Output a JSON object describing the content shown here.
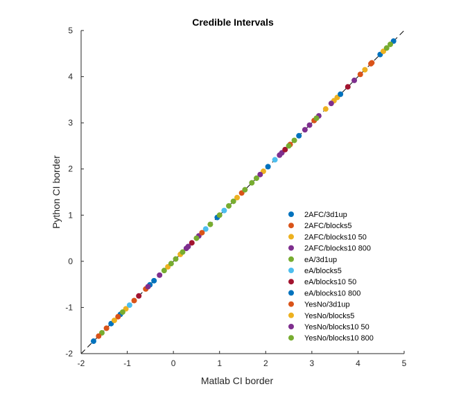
{
  "chart_data": {
    "type": "scatter",
    "title": "Credible Intervals",
    "xlabel": "Matlab CI border",
    "ylabel": "Python CI border",
    "xlim": [
      -2,
      5
    ],
    "ylim": [
      -2,
      5
    ],
    "xticks": [
      "-2",
      "-1",
      "0",
      "1",
      "2",
      "3",
      "4",
      "5"
    ],
    "yticks": [
      "-2",
      "-1",
      "0",
      "1",
      "2",
      "3",
      "4",
      "5"
    ],
    "grid": false,
    "legend_position": "bottom-right",
    "reference_line": "identity",
    "series": [
      {
        "name": "2AFC/3d1up",
        "color": "#0072BD",
        "x": [
          -1.73,
          -1.15,
          -0.51,
          0.95,
          2.05,
          4.48,
          4.77
        ],
        "y": [
          -1.73,
          -1.15,
          -0.51,
          0.95,
          2.05,
          4.48,
          4.77
        ]
      },
      {
        "name": "2AFC/blocks5",
        "color": "#D95319",
        "x": [
          -1.45,
          -1.2,
          -0.6,
          1.48,
          2.53,
          4.05,
          4.3
        ],
        "y": [
          -1.45,
          -1.2,
          -0.6,
          1.48,
          2.53,
          4.05,
          4.3
        ]
      },
      {
        "name": "2AFC/blocks10 50",
        "color": "#EDB120",
        "x": [
          -1.03,
          -0.12,
          1.95,
          3.3,
          3.55,
          4.55
        ],
        "y": [
          -1.03,
          -0.12,
          1.95,
          3.3,
          3.55,
          4.55
        ]
      },
      {
        "name": "2AFC/blocks10 800",
        "color": "#7E2F8E",
        "x": [
          -0.3,
          0.28,
          0.55,
          2.35,
          2.85,
          3.15,
          3.92
        ],
        "y": [
          -0.3,
          0.28,
          0.55,
          2.35,
          2.85,
          3.15,
          3.92
        ]
      },
      {
        "name": "eA/3d1up",
        "color": "#77AC30",
        "x": [
          -1.55,
          -0.05,
          0.5,
          1.2,
          1.7,
          2.62,
          4.62
        ],
        "y": [
          -1.55,
          -0.05,
          0.5,
          1.2,
          1.7,
          2.62,
          4.62
        ]
      },
      {
        "name": "eA/blocks5",
        "color": "#4DBEEE",
        "x": [
          -0.95,
          0.7,
          1.1,
          2.2
        ],
        "y": [
          -0.95,
          0.7,
          1.1,
          2.2
        ]
      },
      {
        "name": "eA/blocks10 50",
        "color": "#A2142F",
        "x": [
          -0.75,
          0.4,
          2.42,
          3.78
        ],
        "y": [
          -0.75,
          0.4,
          2.42,
          3.78
        ]
      },
      {
        "name": "eA/blocks10 800",
        "color": "#0072BD",
        "x": [
          -1.35,
          -0.42,
          2.72,
          3.62
        ],
        "y": [
          -1.35,
          -0.42,
          2.72,
          3.62
        ]
      },
      {
        "name": "YesNo/3d1up",
        "color": "#D95319",
        "x": [
          -1.62,
          -0.85,
          0.62,
          3.05,
          4.28
        ],
        "y": [
          -1.62,
          -0.85,
          0.62,
          3.05,
          4.28
        ]
      },
      {
        "name": "YesNo/blocks5",
        "color": "#EDB120",
        "x": [
          -1.28,
          0.15,
          1.38,
          3.48,
          4.15
        ],
        "y": [
          -1.28,
          0.15,
          1.38,
          3.48,
          4.15
        ]
      },
      {
        "name": "YesNo/blocks10 50",
        "color": "#7E2F8E",
        "x": [
          -0.55,
          0.32,
          1.88,
          2.3,
          2.95,
          3.42
        ],
        "y": [
          -0.55,
          0.32,
          1.88,
          2.3,
          2.95,
          3.42
        ]
      },
      {
        "name": "YesNo/blocks10 800",
        "color": "#77AC30",
        "x": [
          -1.1,
          -0.2,
          0.05,
          0.2,
          0.8,
          1.0,
          1.3,
          1.55,
          1.8,
          2.5,
          3.1,
          4.7
        ],
        "y": [
          -1.1,
          -0.2,
          0.05,
          0.2,
          0.8,
          1.0,
          1.3,
          1.55,
          1.8,
          2.5,
          3.1,
          4.7
        ]
      }
    ]
  }
}
